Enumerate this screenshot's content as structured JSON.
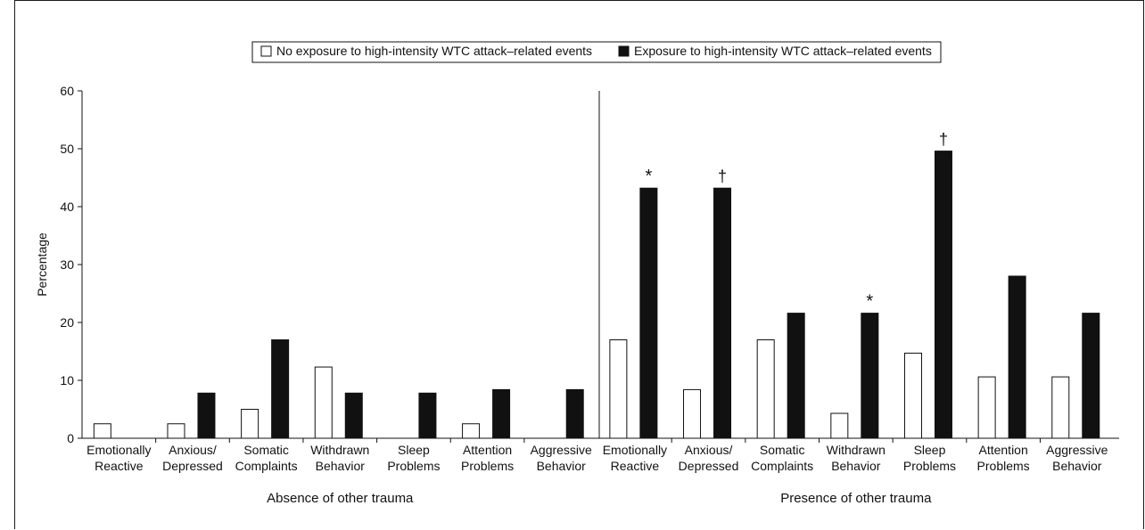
{
  "chart_data": {
    "type": "bar",
    "ylabel": "Percentage",
    "ylim": [
      0,
      60
    ],
    "yticks": [
      0,
      10,
      20,
      30,
      40,
      50,
      60
    ],
    "legend": {
      "placement": "top-center",
      "items": [
        {
          "label": "No exposure to high-intensity WTC attack–related events",
          "fill": "#ffffff"
        },
        {
          "label": "Exposure to high-intensity WTC attack–related events",
          "fill": "#111111"
        }
      ]
    },
    "groups": [
      {
        "label": "Absence of other trauma",
        "categories": [
          {
            "line1": "Emotionally",
            "line2": "Reactive"
          },
          {
            "line1": "Anxious/",
            "line2": "Depressed"
          },
          {
            "line1": "Somatic",
            "line2": "Complaints"
          },
          {
            "line1": "Withdrawn",
            "line2": "Behavior"
          },
          {
            "line1": "Sleep",
            "line2": "Problems"
          },
          {
            "line1": "Attention",
            "line2": "Problems"
          },
          {
            "line1": "Aggressive",
            "line2": "Behavior"
          }
        ],
        "series": [
          {
            "name": "No exposure to high-intensity WTC attack–related events",
            "values": [
              2.5,
              2.5,
              5.0,
              12.3,
              0,
              2.5,
              0
            ]
          },
          {
            "name": "Exposure to high-intensity WTC attack–related events",
            "values": [
              0,
              7.8,
              17.0,
              7.8,
              7.8,
              8.4,
              8.4
            ]
          }
        ],
        "annotations": [
          "",
          "",
          "",
          "",
          "",
          "",
          ""
        ]
      },
      {
        "label": "Presence of other trauma",
        "categories": [
          {
            "line1": "Emotionally",
            "line2": "Reactive"
          },
          {
            "line1": "Anxious/",
            "line2": "Depressed"
          },
          {
            "line1": "Somatic",
            "line2": "Complaints"
          },
          {
            "line1": "Withdrawn",
            "line2": "Behavior"
          },
          {
            "line1": "Sleep",
            "line2": "Problems"
          },
          {
            "line1": "Attention",
            "line2": "Problems"
          },
          {
            "line1": "Aggressive",
            "line2": "Behavior"
          }
        ],
        "series": [
          {
            "name": "No exposure to high-intensity WTC attack–related events",
            "values": [
              17.0,
              8.4,
              17.0,
              4.3,
              14.7,
              10.6,
              10.6
            ]
          },
          {
            "name": "Exposure to high-intensity WTC attack–related events",
            "values": [
              43.2,
              43.2,
              21.6,
              21.6,
              49.6,
              28.0,
              21.6
            ]
          }
        ],
        "annotations": [
          "*",
          "†",
          "",
          "*",
          "†",
          "",
          ""
        ]
      }
    ],
    "grid": false
  }
}
